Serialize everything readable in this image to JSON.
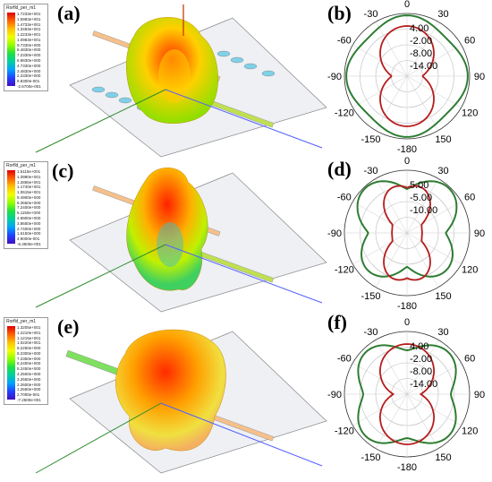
{
  "panels": [
    {
      "label": "(a)",
      "legend_title": "Rorfld_per_m1",
      "legend_ticks": [
        "1.7233e+001",
        "1.5983e+001",
        "1.4733e+001",
        "1.3483e+001",
        "1.2233e+001",
        "1.0983e+001",
        "9.7330e+000",
        "8.4830e+000",
        "7.2330e+000",
        "5.9830e+000",
        "4.7330e+000",
        "3.4830e+000",
        "2.2330e+000",
        "9.8300e-001",
        "-2.6700e-001"
      ]
    },
    {
      "label": "(c)",
      "legend_title": "Rorfld_per_m1",
      "legend_ticks": [
        "1.5115e+001",
        "1.3990e+001",
        "1.2865e+001",
        "1.1740e+001",
        "1.0615e+001",
        "9.4900e+000",
        "8.3650e+000",
        "7.2400e+000",
        "6.1150e+000",
        "4.9900e+000",
        "3.8650e+000",
        "2.7400e+000",
        "1.6150e+000",
        "4.9000e-001",
        "-6.3500e-001"
      ]
    },
    {
      "label": "(e)",
      "legend_title": "Rorfld_per_m1",
      "legend_ticks": [
        "1.3205e+001",
        "1.2210e+001",
        "1.1215e+001",
        "1.0220e+001",
        "9.2250e+000",
        "8.2300e+000",
        "7.2350e+000",
        "6.2400e+000",
        "5.2450e+000",
        "4.2500e+000",
        "3.2550e+000",
        "2.2600e+000",
        "1.2650e+000",
        "2.7000e-001",
        "-7.2500e-001"
      ]
    }
  ],
  "polar": [
    {
      "label": "(b)",
      "radial_labels": [
        "4.00",
        "-2.00",
        "-8.00",
        "-14.00"
      ],
      "angle_labels": [
        "0",
        "30",
        "60",
        "90",
        "120",
        "150",
        "-180",
        "-150",
        "-120",
        "-90",
        "-60",
        "-30"
      ]
    },
    {
      "label": "(d)",
      "radial_labels": [
        "5.00",
        "-5.00",
        "-10.00"
      ],
      "angle_labels": [
        "0",
        "30",
        "60",
        "90",
        "120",
        "150",
        "-180",
        "-150",
        "-120",
        "-90",
        "-60",
        "-30"
      ]
    },
    {
      "label": "(f)",
      "radial_labels": [
        "4.00",
        "-2.00",
        "-8.00",
        "-14.00"
      ],
      "angle_labels": [
        "0",
        "30",
        "60",
        "90",
        "120",
        "150",
        "-180",
        "-150",
        "-120",
        "-90",
        "-60",
        "-30"
      ]
    }
  ],
  "colors": {
    "green_curve": "#2e7d32",
    "red_curve": "#b71c1c"
  }
}
